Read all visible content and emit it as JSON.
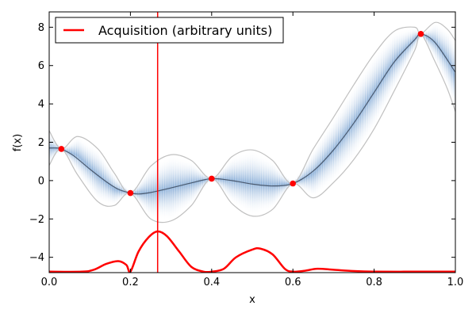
{
  "chart_data": {
    "type": "line",
    "title": "",
    "xlabel": "x",
    "ylabel": "f(x)",
    "xlim": [
      0.0,
      1.0
    ],
    "ylim": [
      -4.8,
      8.8
    ],
    "xticks": [
      0.0,
      0.2,
      0.4,
      0.6,
      0.8,
      1.0
    ],
    "xtick_labels": [
      "0.0",
      "0.2",
      "0.4",
      "0.6",
      "0.8",
      "1.0"
    ],
    "yticks": [
      -4,
      -2,
      0,
      2,
      4,
      6,
      8
    ],
    "ytick_labels": [
      "−4",
      "−2",
      "0",
      "2",
      "4",
      "6",
      "8"
    ],
    "grid": false,
    "legend": {
      "placement": "top-left",
      "entries": [
        "Acquisition (arbitrary units)"
      ]
    },
    "colors": {
      "mean": "#4a5a70",
      "band_edge": "#c0c0c0",
      "band_fill": "#5b8ec8",
      "acquisition": "#ff0000",
      "observations": "#ff0000",
      "next_sample_line": "#ff0000"
    },
    "observations": [
      {
        "x": 0.03,
        "y": 1.65
      },
      {
        "x": 0.2,
        "y": -0.65
      },
      {
        "x": 0.4,
        "y": 0.1
      },
      {
        "x": 0.6,
        "y": -0.15
      },
      {
        "x": 0.915,
        "y": 7.65
      }
    ],
    "next_sample_x": 0.267,
    "series": [
      {
        "name": "",
        "role": "posterior-mean",
        "x": [
          0,
          0.02,
          0.03,
          0.06,
          0.1,
          0.14,
          0.17,
          0.2,
          0.22,
          0.25,
          0.3,
          0.35,
          0.4,
          0.45,
          0.5,
          0.55,
          0.6,
          0.65,
          0.7,
          0.75,
          0.8,
          0.85,
          0.9,
          0.915,
          0.95,
          1.0
        ],
        "y": [
          1.7,
          1.7,
          1.65,
          1.3,
          0.6,
          -0.05,
          -0.45,
          -0.65,
          -0.7,
          -0.62,
          -0.38,
          -0.12,
          0.1,
          0.0,
          -0.18,
          -0.28,
          -0.15,
          0.5,
          1.6,
          3.0,
          4.6,
          6.2,
          7.35,
          7.65,
          7.2,
          5.65
        ]
      },
      {
        "name": "",
        "role": "confidence-upper",
        "x": [
          0,
          0.03,
          0.07,
          0.12,
          0.16,
          0.2,
          0.25,
          0.3,
          0.35,
          0.4,
          0.45,
          0.5,
          0.55,
          0.6,
          0.65,
          0.7,
          0.75,
          0.8,
          0.85,
          0.9,
          0.915,
          0.95,
          0.98,
          1.0
        ],
        "y": [
          2.6,
          1.65,
          2.3,
          1.65,
          0.4,
          -0.65,
          0.75,
          1.35,
          1.05,
          0.1,
          1.25,
          1.6,
          1.05,
          -0.15,
          1.65,
          3.3,
          5.0,
          6.6,
          7.8,
          8.0,
          7.65,
          8.25,
          7.9,
          7.3
        ]
      },
      {
        "name": "",
        "role": "confidence-lower",
        "x": [
          0,
          0.03,
          0.07,
          0.12,
          0.16,
          0.2,
          0.25,
          0.3,
          0.35,
          0.4,
          0.45,
          0.5,
          0.55,
          0.6,
          0.65,
          0.7,
          0.75,
          0.8,
          0.85,
          0.9,
          0.915,
          0.95,
          0.98,
          1.0
        ],
        "y": [
          0.8,
          1.65,
          0.3,
          -1.1,
          -1.3,
          -0.65,
          -2.0,
          -2.1,
          -1.3,
          0.1,
          -1.2,
          -1.85,
          -1.5,
          -0.15,
          -0.9,
          -0.1,
          1.1,
          2.7,
          4.7,
          6.8,
          7.65,
          6.2,
          4.8,
          3.6
        ]
      },
      {
        "name": "Acquisition (arbitrary units)",
        "role": "acquisition",
        "x": [
          0,
          0.08,
          0.11,
          0.14,
          0.17,
          0.19,
          0.2,
          0.22,
          0.245,
          0.267,
          0.29,
          0.32,
          0.35,
          0.38,
          0.4,
          0.43,
          0.46,
          0.5,
          0.52,
          0.55,
          0.58,
          0.6,
          0.63,
          0.66,
          0.7,
          0.75,
          0.8,
          0.9,
          1.0
        ],
        "y": [
          -4.75,
          -4.75,
          -4.65,
          -4.35,
          -4.2,
          -4.4,
          -4.75,
          -3.7,
          -2.95,
          -2.65,
          -2.9,
          -3.7,
          -4.5,
          -4.75,
          -4.75,
          -4.6,
          -4.0,
          -3.6,
          -3.55,
          -3.85,
          -4.6,
          -4.75,
          -4.7,
          -4.6,
          -4.65,
          -4.72,
          -4.75,
          -4.75,
          -4.75
        ]
      }
    ]
  }
}
